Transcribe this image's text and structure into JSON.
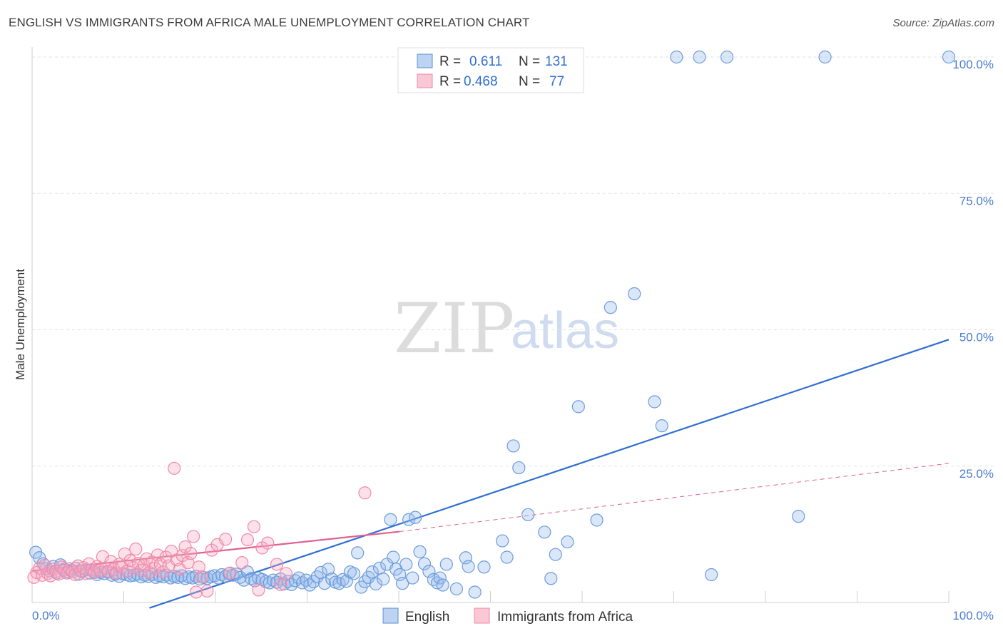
{
  "title": "ENGLISH VS IMMIGRANTS FROM AFRICA MALE UNEMPLOYMENT CORRELATION CHART",
  "source": "Source: ZipAtlas.com",
  "watermark": {
    "zip": "ZIP",
    "atlas": "atlas"
  },
  "chart_data": {
    "type": "scatter",
    "title": "ENGLISH VS IMMIGRANTS FROM AFRICA MALE UNEMPLOYMENT CORRELATION CHART",
    "xlabel": "",
    "ylabel": "Male Unemployment",
    "xlim": [
      0,
      100
    ],
    "ylim": [
      0,
      100
    ],
    "x_tick_labels": [
      "0.0%",
      "100.0%"
    ],
    "y_ticks": [
      25,
      50,
      75,
      100
    ],
    "y_tick_labels": [
      "25.0%",
      "50.0%",
      "75.0%",
      "100.0%"
    ],
    "grid": "horizontal dashed",
    "legend_placement": "top-center",
    "colors": {
      "english": "#5b8fd6",
      "africa": "#f08aa8",
      "english_line": "#2f6fd0",
      "africa_line": "#e06090"
    },
    "legend": [
      {
        "r_label": "R =",
        "r_value": "0.611",
        "n_label": "N =",
        "n_value": "131"
      },
      {
        "r_label": "R =",
        "r_value": "0.468",
        "n_label": "N =",
        "n_value": "77"
      }
    ],
    "series": [
      {
        "name": "English",
        "trendline": {
          "x": [
            12.8,
            100
          ],
          "y": [
            -1,
            48.2
          ]
        },
        "points": [
          [
            0.4,
            9.2
          ],
          [
            0.8,
            8.2
          ],
          [
            1.2,
            7.1
          ],
          [
            1.5,
            6.2
          ],
          [
            1.9,
            5.8
          ],
          [
            2.3,
            6.6
          ],
          [
            2.7,
            5.4
          ],
          [
            3.1,
            6.9
          ],
          [
            3.5,
            6.1
          ],
          [
            3.9,
            5.6
          ],
          [
            4.3,
            5.9
          ],
          [
            4.7,
            6.3
          ],
          [
            5.1,
            5.2
          ],
          [
            5.5,
            5.8
          ],
          [
            5.9,
            6.0
          ],
          [
            6.3,
            5.4
          ],
          [
            6.7,
            5.7
          ],
          [
            7.1,
            5.1
          ],
          [
            7.5,
            5.5
          ],
          [
            7.9,
            5.3
          ],
          [
            8.3,
            5.6
          ],
          [
            8.7,
            5.0
          ],
          [
            9.1,
            5.2
          ],
          [
            9.5,
            4.8
          ],
          [
            9.9,
            5.3
          ],
          [
            10.3,
            5.1
          ],
          [
            10.7,
            4.9
          ],
          [
            11.1,
            5.0
          ],
          [
            11.5,
            5.2
          ],
          [
            11.9,
            4.7
          ],
          [
            12.3,
            5.0
          ],
          [
            12.7,
            4.8
          ],
          [
            13.1,
            5.1
          ],
          [
            13.5,
            4.6
          ],
          [
            13.9,
            4.9
          ],
          [
            14.3,
            4.7
          ],
          [
            14.7,
            5.0
          ],
          [
            15.1,
            4.5
          ],
          [
            15.5,
            4.8
          ],
          [
            15.9,
            4.6
          ],
          [
            16.3,
            4.9
          ],
          [
            16.7,
            4.4
          ],
          [
            17.1,
            4.7
          ],
          [
            17.5,
            4.5
          ],
          [
            17.9,
            4.8
          ],
          [
            18.3,
            4.3
          ],
          [
            18.7,
            4.6
          ],
          [
            19.1,
            4.4
          ],
          [
            19.5,
            4.7
          ],
          [
            19.9,
            4.9
          ],
          [
            20.3,
            4.5
          ],
          [
            20.7,
            5.1
          ],
          [
            21.1,
            4.8
          ],
          [
            21.5,
            5.3
          ],
          [
            21.9,
            5.0
          ],
          [
            22.3,
            5.2
          ],
          [
            22.7,
            4.6
          ],
          [
            23.1,
            4.1
          ],
          [
            23.5,
            5.6
          ],
          [
            23.9,
            4.4
          ],
          [
            24.3,
            4.0
          ],
          [
            24.7,
            4.5
          ],
          [
            25.1,
            4.2
          ],
          [
            25.5,
            3.8
          ],
          [
            25.9,
            3.6
          ],
          [
            26.3,
            4.1
          ],
          [
            26.7,
            3.7
          ],
          [
            27.1,
            4.3
          ],
          [
            27.5,
            3.4
          ],
          [
            27.9,
            3.9
          ],
          [
            28.3,
            3.3
          ],
          [
            28.7,
            4.0
          ],
          [
            29.1,
            4.5
          ],
          [
            29.5,
            3.6
          ],
          [
            29.9,
            4.1
          ],
          [
            30.3,
            3.2
          ],
          [
            30.7,
            3.8
          ],
          [
            31.1,
            4.7
          ],
          [
            31.5,
            5.5
          ],
          [
            31.9,
            3.5
          ],
          [
            32.3,
            6.1
          ],
          [
            32.7,
            4.3
          ],
          [
            33.1,
            3.7
          ],
          [
            33.5,
            3.5
          ],
          [
            33.9,
            4.2
          ],
          [
            34.3,
            3.9
          ],
          [
            34.7,
            5.6
          ],
          [
            35.1,
            5.3
          ],
          [
            35.5,
            9.1
          ],
          [
            35.9,
            2.8
          ],
          [
            36.3,
            3.8
          ],
          [
            36.7,
            4.6
          ],
          [
            37.1,
            5.6
          ],
          [
            37.5,
            3.4
          ],
          [
            37.9,
            6.3
          ],
          [
            38.3,
            4.3
          ],
          [
            38.7,
            7.0
          ],
          [
            39.1,
            15.2
          ],
          [
            39.4,
            8.3
          ],
          [
            39.7,
            6.1
          ],
          [
            40.1,
            5.1
          ],
          [
            40.4,
            3.5
          ],
          [
            40.8,
            7.0
          ],
          [
            41.1,
            15.2
          ],
          [
            41.5,
            4.5
          ],
          [
            41.8,
            15.6
          ],
          [
            42.3,
            9.3
          ],
          [
            42.8,
            7.1
          ],
          [
            43.3,
            5.7
          ],
          [
            43.8,
            4.2
          ],
          [
            44.2,
            3.6
          ],
          [
            44.5,
            4.5
          ],
          [
            44.8,
            3.2
          ],
          [
            45.2,
            7.0
          ],
          [
            46.3,
            2.5
          ],
          [
            47.3,
            8.2
          ],
          [
            47.6,
            6.6
          ],
          [
            48.3,
            1.9
          ],
          [
            49.3,
            6.5
          ],
          [
            51.3,
            11.3
          ],
          [
            51.8,
            8.3
          ],
          [
            52.5,
            28.7
          ],
          [
            53.1,
            24.7
          ],
          [
            54.1,
            16.1
          ],
          [
            55.9,
            12.9
          ],
          [
            56.6,
            4.4
          ],
          [
            57.1,
            8.8
          ],
          [
            58.4,
            11.1
          ],
          [
            59.6,
            35.9
          ],
          [
            61.6,
            15.1
          ],
          [
            63.1,
            54.1
          ],
          [
            65.7,
            56.6
          ],
          [
            67.9,
            36.8
          ],
          [
            68.7,
            32.4
          ],
          [
            70.3,
            100.0
          ],
          [
            72.8,
            100.0
          ],
          [
            74.1,
            5.1
          ],
          [
            75.8,
            100.0
          ],
          [
            83.6,
            15.8
          ],
          [
            86.5,
            100.0
          ],
          [
            100.0,
            100.0
          ]
        ]
      },
      {
        "name": "Immigrants from Africa",
        "trendline": {
          "x": [
            0,
            40.1
          ],
          "y": [
            5.8,
            13.0
          ]
        },
        "trendline_extension": {
          "x": [
            40.1,
            100
          ],
          "y": [
            13.0,
            25.5
          ]
        },
        "points": [
          [
            0.2,
            4.6
          ],
          [
            0.5,
            5.5
          ],
          [
            0.8,
            6.3
          ],
          [
            1.1,
            5.0
          ],
          [
            1.4,
            6.8
          ],
          [
            1.7,
            5.3
          ],
          [
            2.0,
            4.9
          ],
          [
            2.3,
            6.1
          ],
          [
            2.6,
            5.7
          ],
          [
            2.9,
            5.2
          ],
          [
            3.2,
            6.5
          ],
          [
            3.5,
            5.9
          ],
          [
            3.8,
            5.4
          ],
          [
            4.1,
            6.2
          ],
          [
            4.4,
            5.6
          ],
          [
            4.7,
            5.1
          ],
          [
            5.0,
            6.7
          ],
          [
            5.3,
            5.8
          ],
          [
            5.6,
            6.4
          ],
          [
            5.9,
            5.3
          ],
          [
            6.2,
            7.1
          ],
          [
            6.5,
            6.0
          ],
          [
            6.8,
            5.5
          ],
          [
            7.1,
            6.6
          ],
          [
            7.4,
            5.9
          ],
          [
            7.7,
            8.4
          ],
          [
            8.0,
            6.3
          ],
          [
            8.3,
            5.7
          ],
          [
            8.6,
            7.5
          ],
          [
            8.9,
            6.1
          ],
          [
            9.2,
            5.4
          ],
          [
            9.5,
            7.0
          ],
          [
            9.8,
            6.5
          ],
          [
            10.1,
            8.9
          ],
          [
            10.4,
            5.8
          ],
          [
            10.7,
            7.7
          ],
          [
            11.0,
            6.4
          ],
          [
            11.3,
            9.8
          ],
          [
            11.6,
            7.2
          ],
          [
            11.9,
            5.9
          ],
          [
            12.2,
            6.8
          ],
          [
            12.5,
            8.0
          ],
          [
            12.8,
            5.5
          ],
          [
            13.1,
            7.4
          ],
          [
            13.4,
            6.3
          ],
          [
            13.7,
            8.7
          ],
          [
            14.0,
            7.0
          ],
          [
            14.3,
            5.6
          ],
          [
            14.6,
            8.3
          ],
          [
            14.9,
            6.7
          ],
          [
            15.2,
            9.4
          ],
          [
            15.5,
            24.6
          ],
          [
            15.8,
            7.8
          ],
          [
            16.1,
            6.1
          ],
          [
            16.4,
            8.6
          ],
          [
            16.7,
            10.2
          ],
          [
            17.0,
            7.3
          ],
          [
            17.3,
            9.0
          ],
          [
            17.6,
            12.1
          ],
          [
            17.9,
            1.9
          ],
          [
            18.2,
            6.5
          ],
          [
            18.5,
            4.7
          ],
          [
            19.1,
            2.1
          ],
          [
            19.6,
            9.6
          ],
          [
            20.2,
            10.6
          ],
          [
            21.1,
            11.6
          ],
          [
            21.6,
            5.4
          ],
          [
            22.9,
            7.3
          ],
          [
            23.5,
            11.5
          ],
          [
            24.2,
            13.9
          ],
          [
            24.7,
            2.3
          ],
          [
            25.1,
            10.0
          ],
          [
            25.7,
            10.9
          ],
          [
            26.7,
            7.0
          ],
          [
            27.1,
            3.3
          ],
          [
            27.7,
            5.3
          ],
          [
            36.3,
            20.1
          ]
        ]
      }
    ]
  },
  "bottom_legend": [
    {
      "label": "English"
    },
    {
      "label": "Immigrants from Africa"
    }
  ]
}
